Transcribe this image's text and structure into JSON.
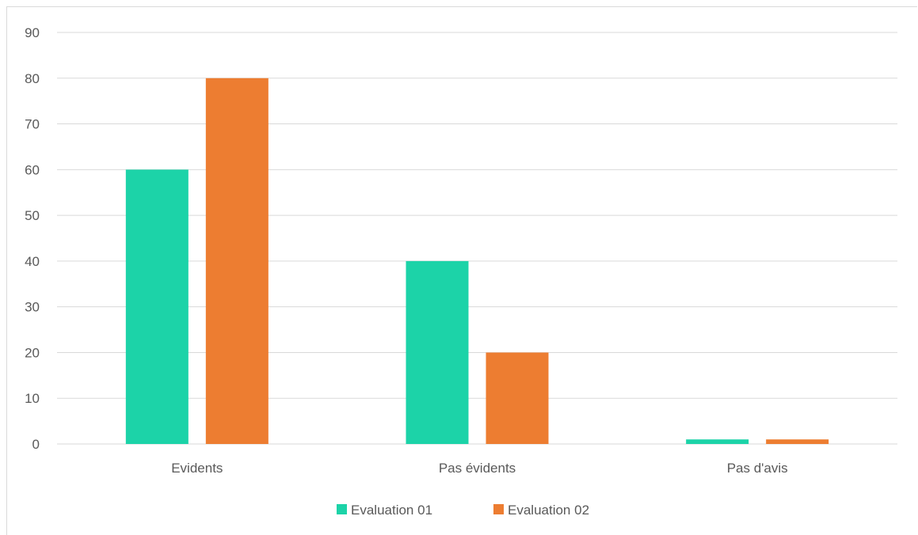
{
  "chart_data": {
    "type": "bar",
    "title": "",
    "xlabel": "",
    "ylabel": "",
    "categories": [
      "Evidents",
      "Pas évidents",
      "Pas d'avis"
    ],
    "series": [
      {
        "name": "Evaluation 01",
        "color": "#1cd3a8",
        "values": [
          60,
          40,
          1
        ]
      },
      {
        "name": "Evaluation 02",
        "color": "#ed7d31",
        "values": [
          80,
          20,
          1
        ]
      }
    ],
    "ylim": [
      0,
      90
    ],
    "yticks": [
      0,
      10,
      20,
      30,
      40,
      50,
      60,
      70,
      80,
      90
    ],
    "grid": true,
    "legend_position": "bottom"
  }
}
